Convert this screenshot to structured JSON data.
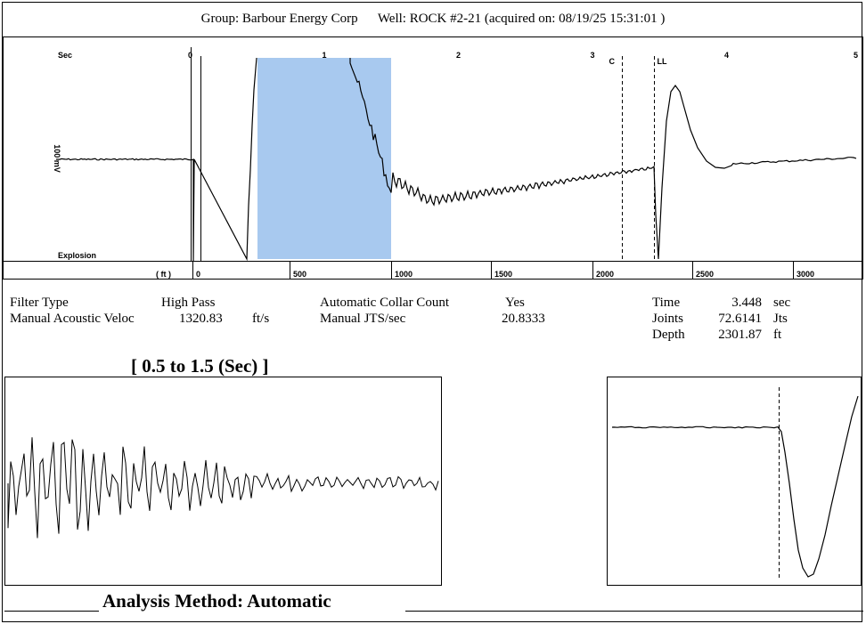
{
  "header": {
    "group_label": "Group:",
    "group_value": "Barbour Energy Corp",
    "well_label": "Well:",
    "well_value": "ROCK #2-21",
    "acquired_text": "(acquired on: 08/19/25 15:31:01 )"
  },
  "chart_data": [
    {
      "type": "line",
      "id": "main-trace",
      "time_axis": {
        "unit_label": "Sec",
        "ticks": [
          "0",
          "1",
          "2",
          "3",
          "4",
          "5"
        ],
        "range": [
          0,
          5
        ]
      },
      "depth_axis": {
        "unit_label": "( ft )",
        "ticks": [
          "0",
          "500",
          "1000",
          "1500",
          "2000",
          "2500",
          "3000"
        ]
      },
      "y_label": "100 mV",
      "bottom_left_label": "Explosion",
      "markers": [
        {
          "label": "C",
          "time": 3.2
        },
        {
          "label": "LL",
          "time": 3.45
        }
      ],
      "highlight": {
        "from_sec": 0.5,
        "to_sec": 1.5,
        "color": "#a8c9ef"
      },
      "baseline_markers_sec": [
        0.0,
        0.09
      ],
      "series": [
        {
          "time_sec": [
            -1.0,
            -0.1,
            0.0
          ],
          "amplitude": [
            0,
            0,
            0
          ],
          "note": ""
        }
      ]
    },
    {
      "type": "line",
      "id": "zoom-trace",
      "range_sec": [
        0.5,
        1.5
      ]
    },
    {
      "type": "line",
      "id": "collar-trace"
    }
  ],
  "params": {
    "filter_type_label": "Filter Type",
    "filter_type_value": "High Pass",
    "acoustic_label": "Manual Acoustic Veloc",
    "acoustic_value": "1320.83",
    "acoustic_unit": "ft/s",
    "collar_label": "Automatic Collar Count",
    "collar_value": "Yes",
    "jts_label": "Manual JTS/sec",
    "jts_value": "20.8333",
    "time_label": "Time",
    "time_value": "3.448",
    "time_unit": "sec",
    "joints_label": "Joints",
    "joints_value": "72.6141",
    "joints_unit": "Jts",
    "depth_label": "Depth",
    "depth_value": "2301.87",
    "depth_unit": "ft"
  },
  "zoom_title": "[ 0.5  to  1.5 (Sec) ]",
  "analysis_method": "Analysis Method:   Automatic"
}
